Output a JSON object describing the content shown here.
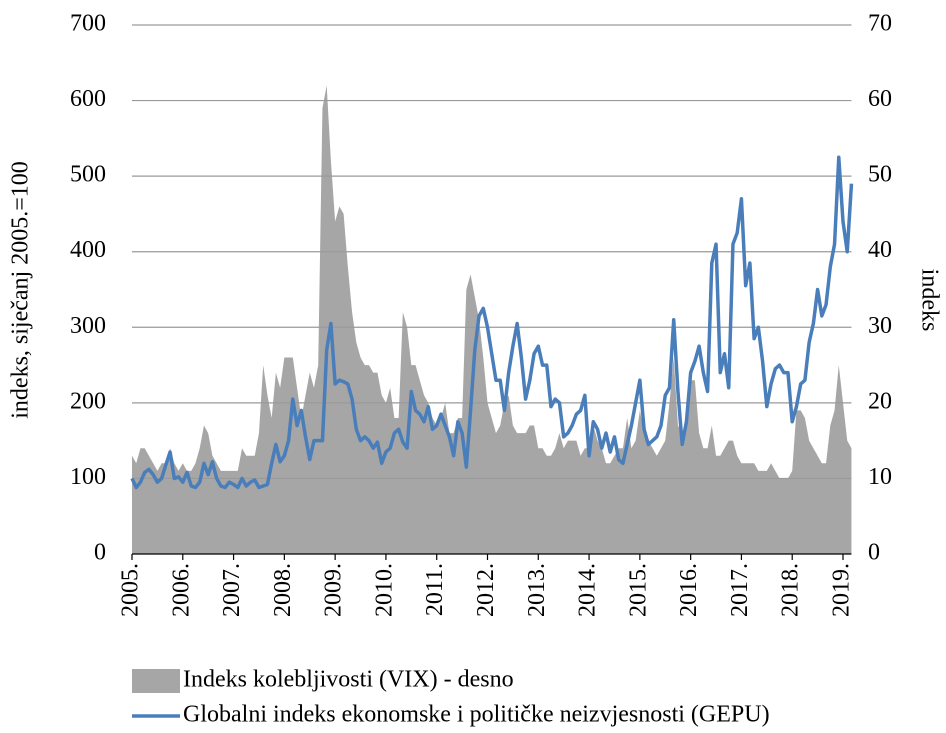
{
  "chart_data": {
    "type": "line",
    "ylabel": "indeks, siječanj 2005.=100",
    "y2label": "indeks",
    "categories": [
      "2005.",
      null,
      null,
      null,
      null,
      null,
      null,
      null,
      null,
      null,
      null,
      null,
      "2006.",
      null,
      null,
      null,
      null,
      null,
      null,
      null,
      null,
      null,
      null,
      null,
      "2007.",
      null,
      null,
      null,
      null,
      null,
      null,
      null,
      null,
      null,
      null,
      null,
      "2008.",
      null,
      null,
      null,
      null,
      null,
      null,
      null,
      null,
      null,
      null,
      null,
      "2009.",
      null,
      null,
      null,
      null,
      null,
      null,
      null,
      null,
      null,
      null,
      null,
      "2010.",
      null,
      null,
      null,
      null,
      null,
      null,
      null,
      null,
      null,
      null,
      null,
      "2011.",
      null,
      null,
      null,
      null,
      null,
      null,
      null,
      null,
      null,
      null,
      null,
      "2012.",
      null,
      null,
      null,
      null,
      null,
      null,
      null,
      null,
      null,
      null,
      null,
      "2013.",
      null,
      null,
      null,
      null,
      null,
      null,
      null,
      null,
      null,
      null,
      null,
      "2014.",
      null,
      null,
      null,
      null,
      null,
      null,
      null,
      null,
      null,
      null,
      null,
      "2015.",
      null,
      null,
      null,
      null,
      null,
      null,
      null,
      null,
      null,
      null,
      null,
      "2016.",
      null,
      null,
      null,
      null,
      null,
      null,
      null,
      null,
      null,
      null,
      null,
      "2017.",
      null,
      null,
      null,
      null,
      null,
      null,
      null,
      null,
      null,
      null,
      null,
      "2018.",
      null,
      null,
      null,
      null,
      null,
      null,
      null,
      null,
      null,
      null,
      null,
      "2019.",
      null,
      null
    ],
    "series": [
      {
        "name": "Indeks kolebljivosti (VIX) - desno",
        "type": "area",
        "axis": "y2",
        "color": "#a6a6a6",
        "values": [
          13,
          12,
          14,
          14,
          13,
          12,
          11,
          12,
          12,
          14,
          12,
          11,
          12,
          11,
          11,
          12,
          14,
          17,
          16,
          13,
          12,
          11,
          11,
          11,
          11,
          11,
          14,
          13,
          13,
          13,
          16,
          25,
          21,
          18,
          24,
          22,
          26,
          26,
          26,
          22,
          18,
          21,
          24,
          22,
          25,
          59,
          62,
          52,
          44,
          46,
          45,
          38,
          32,
          28,
          26,
          25,
          25,
          24,
          24,
          21,
          20,
          22,
          18,
          18,
          32,
          30,
          25,
          25,
          23,
          21,
          20,
          18,
          17,
          18,
          20,
          16,
          16,
          18,
          18,
          35,
          37,
          34,
          31,
          26,
          20,
          18,
          16,
          17,
          20,
          21,
          17,
          16,
          16,
          16,
          17,
          17,
          14,
          14,
          13,
          13,
          14,
          16,
          14,
          15,
          15,
          15,
          13,
          14,
          14,
          17,
          15,
          14,
          12,
          12,
          13,
          14,
          14,
          18,
          14,
          15,
          19,
          16,
          15,
          14,
          13,
          14,
          15,
          20,
          26,
          17,
          16,
          18,
          23,
          23,
          16,
          14,
          14,
          17,
          13,
          13,
          14,
          15,
          15,
          13,
          12,
          12,
          12,
          12,
          11,
          11,
          11,
          12,
          11,
          10,
          10,
          10,
          11,
          19,
          19,
          18,
          15,
          14,
          13,
          12,
          12,
          17,
          19,
          25,
          20,
          15,
          14
        ]
      },
      {
        "name": "Globalni indeks ekonomske i političke neizvjesnosti (GEPU)",
        "type": "line",
        "axis": "y",
        "color": "#4a7ebb",
        "values": [
          100,
          88,
          95,
          108,
          112,
          105,
          95,
          100,
          118,
          135,
          100,
          102,
          95,
          108,
          90,
          88,
          95,
          120,
          105,
          122,
          100,
          90,
          88,
          95,
          92,
          88,
          100,
          90,
          95,
          98,
          88,
          90,
          92,
          120,
          145,
          122,
          130,
          150,
          205,
          170,
          190,
          155,
          125,
          150,
          150,
          150,
          270,
          305,
          225,
          230,
          228,
          225,
          205,
          165,
          150,
          155,
          150,
          140,
          148,
          120,
          135,
          140,
          160,
          165,
          148,
          140,
          215,
          190,
          185,
          175,
          195,
          165,
          170,
          185,
          170,
          155,
          130,
          175,
          160,
          115,
          190,
          270,
          315,
          325,
          300,
          265,
          230,
          230,
          190,
          240,
          275,
          305,
          260,
          205,
          230,
          265,
          275,
          250,
          250,
          195,
          205,
          200,
          155,
          160,
          170,
          185,
          190,
          210,
          130,
          175,
          165,
          140,
          160,
          135,
          155,
          125,
          120,
          145,
          170,
          200,
          230,
          165,
          145,
          150,
          155,
          170,
          210,
          220,
          310,
          215,
          145,
          175,
          240,
          255,
          275,
          240,
          215,
          385,
          410,
          240,
          265,
          220,
          410,
          425,
          470,
          355,
          385,
          285,
          300,
          255,
          195,
          225,
          245,
          250,
          240,
          240,
          175,
          195,
          225,
          230,
          280,
          305,
          350,
          315,
          330,
          380,
          410,
          525,
          440,
          400,
          490
        ]
      }
    ],
    "ylim": [
      0,
      700
    ],
    "yticks": [
      0,
      100,
      200,
      300,
      400,
      500,
      600,
      700
    ],
    "y2lim": [
      0,
      70
    ],
    "y2ticks": [
      0,
      10,
      20,
      30,
      40,
      50,
      60,
      70
    ],
    "grid": true,
    "legend": "bottom"
  }
}
